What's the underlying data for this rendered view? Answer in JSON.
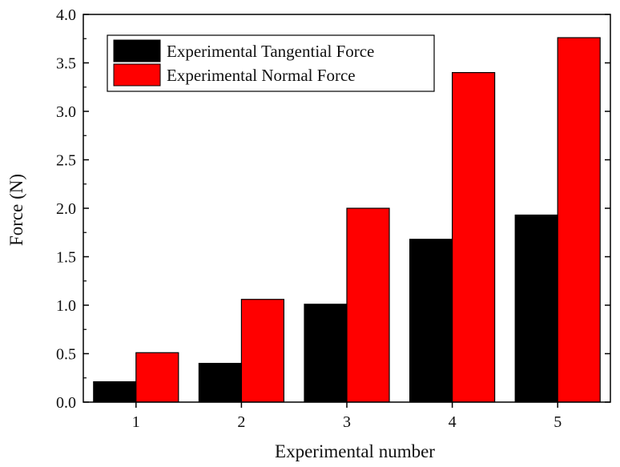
{
  "chart_data": {
    "type": "bar",
    "categories": [
      "1",
      "2",
      "3",
      "4",
      "5"
    ],
    "series": [
      {
        "name": "Experimental Tangential Force",
        "color": "#000000",
        "values": [
          0.21,
          0.4,
          1.01,
          1.68,
          1.93
        ]
      },
      {
        "name": "Experimental Normal Force",
        "color": "#ff0000",
        "values": [
          0.51,
          1.06,
          2.0,
          3.4,
          3.76
        ]
      }
    ],
    "title": "",
    "xlabel": "Experimental number",
    "ylabel": "Force (N)",
    "ylim": [
      0,
      4.0
    ],
    "yticks": [
      "0.0",
      "0.5",
      "1.0",
      "1.5",
      "2.0",
      "2.5",
      "3.0",
      "3.5",
      "4.0"
    ],
    "grid": false,
    "legend_position": "top-left"
  }
}
